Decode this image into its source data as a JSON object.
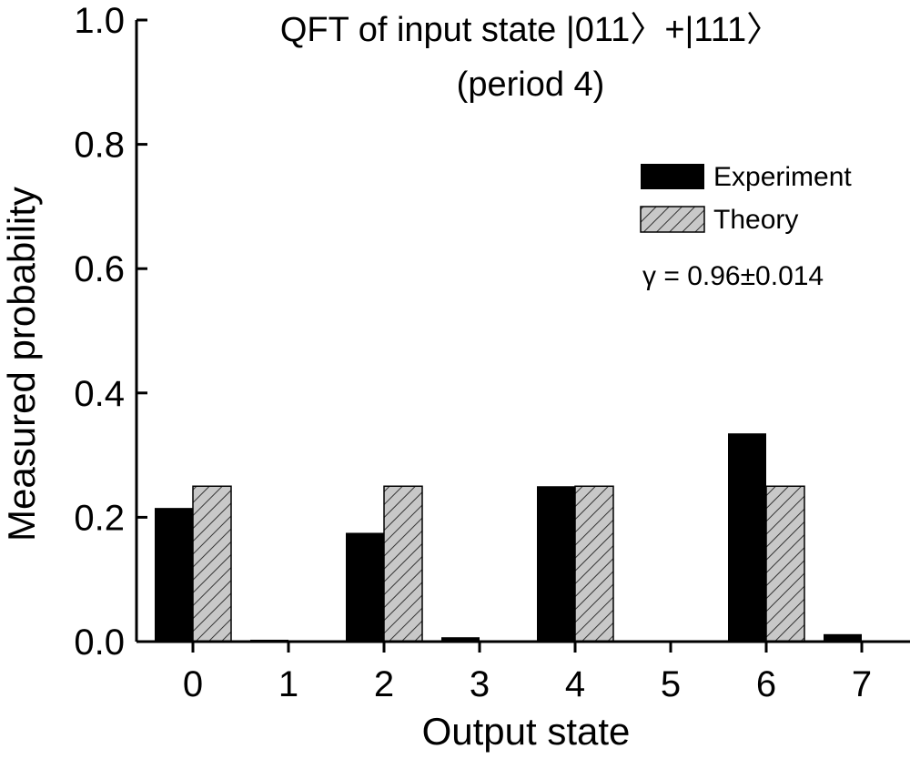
{
  "chart_data": {
    "type": "bar",
    "title": "QFT of input state |011〉+|111〉",
    "subtitle": "(period 4)",
    "xlabel": "Output state",
    "ylabel": "Measured probability",
    "ylim": [
      0,
      1.0
    ],
    "yticks": [
      "0.0",
      "0.2",
      "0.4",
      "0.6",
      "0.8",
      "1.0"
    ],
    "categories": [
      "0",
      "1",
      "2",
      "3",
      "4",
      "5",
      "6",
      "7"
    ],
    "series": [
      {
        "name": "Experiment",
        "values": [
          0.215,
          0.003,
          0.175,
          0.007,
          0.25,
          0.002,
          0.335,
          0.012
        ],
        "color": "#000000",
        "pattern": "solid"
      },
      {
        "name": "Theory",
        "values": [
          0.25,
          0,
          0.25,
          0,
          0.25,
          0,
          0.25,
          0
        ],
        "color": "#c8c8c8",
        "pattern": "hatched"
      }
    ],
    "legend_position": "top-right",
    "annotation": "γ = 0.96±0.014",
    "grid": false
  }
}
